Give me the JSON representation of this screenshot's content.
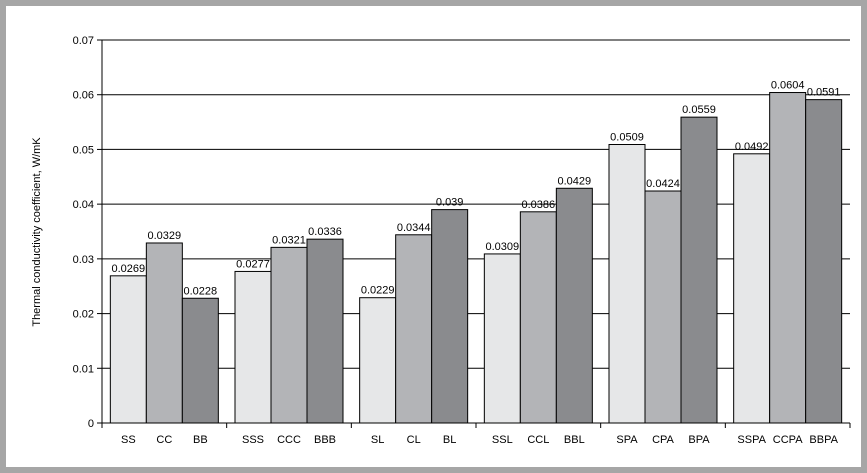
{
  "chart_data": {
    "type": "bar",
    "ylabel": "Thermal conductivity coefficient, W/mK",
    "xlabel": "",
    "title": "",
    "ylim": [
      0,
      0.07
    ],
    "yticks": [
      "0",
      "0.01",
      "0.02",
      "0.03",
      "0.04",
      "0.05",
      "0.06",
      "0.07"
    ],
    "grid": "horizontal",
    "legend": "none",
    "groups": [
      {
        "labels": [
          "SS",
          "CC",
          "BB"
        ],
        "values": [
          0.0269,
          0.0329,
          0.0228
        ],
        "value_labels": [
          "0.0269",
          "0.0329",
          "0.0228"
        ]
      },
      {
        "labels": [
          "SSS",
          "CCC",
          "BBB"
        ],
        "values": [
          0.0277,
          0.0321,
          0.0336
        ],
        "value_labels": [
          "0.0277",
          "0.0321",
          "0.0336"
        ]
      },
      {
        "labels": [
          "SL",
          "CL",
          "BL"
        ],
        "values": [
          0.0229,
          0.0344,
          0.039
        ],
        "value_labels": [
          "0.0229",
          "0.0344",
          "0.039"
        ]
      },
      {
        "labels": [
          "SSL",
          "CCL",
          "BBL"
        ],
        "values": [
          0.0309,
          0.0386,
          0.0429
        ],
        "value_labels": [
          "0.0309",
          "0.0386",
          "0.0429"
        ]
      },
      {
        "labels": [
          "SPA",
          "CPA",
          "BPA"
        ],
        "values": [
          0.0509,
          0.0424,
          0.0559
        ],
        "value_labels": [
          "0.0509",
          "0.0424",
          "0.0559"
        ]
      },
      {
        "labels": [
          "SSPA",
          "CCPA",
          "BBPA"
        ],
        "values": [
          0.0492,
          0.0604,
          0.0591
        ],
        "value_labels": [
          "0.0492",
          "0.0604",
          "0.0591"
        ]
      }
    ],
    "bar_colors": [
      "#e6e7e8",
      "#b3b4b7",
      "#8a8b8e"
    ]
  }
}
